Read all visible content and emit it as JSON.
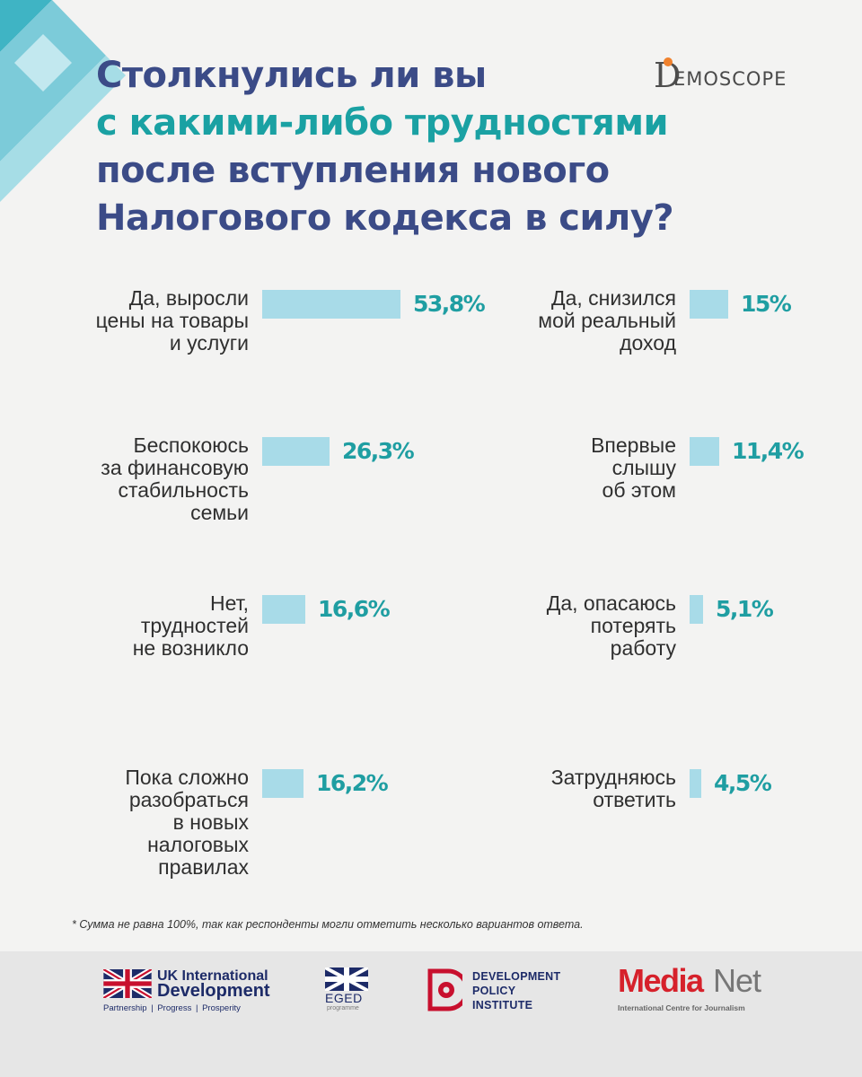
{
  "title": {
    "line1": "Столкнулись ли вы",
    "line2": "с какими-либо трудностями",
    "line3": "после вступления нового",
    "line4": "Налогового кодекса в силу?"
  },
  "brand": {
    "name": "EMOSCOPE",
    "initial": "D"
  },
  "colors": {
    "title": "#3b4b87",
    "highlight": "#1aa1a3",
    "bar": "#a8dbe8",
    "value": "#1f9ea2"
  },
  "chart_data": {
    "type": "bar",
    "orientation": "horizontal",
    "title": "Столкнулись ли вы с какими-либо трудностями после вступления нового Налогового кодекса в силу?",
    "unit": "%",
    "ylim": [
      0,
      53.8
    ],
    "categories": [
      "Да, выросли цены на товары и услуги",
      "Беспокоюсь за финансовую стабильность семьи",
      "Нет, трудностей не возникло",
      "Пока сложно разобраться в новых налоговых правилах",
      "Да, снизился мой реальный доход",
      "Впервые слышу об этом",
      "Да, опасаюсь потерять работу",
      "Затрудняюсь ответить"
    ],
    "values": [
      53.8,
      26.3,
      16.6,
      16.2,
      15,
      11.4,
      5.1,
      4.5
    ],
    "value_labels": [
      "53,8%",
      "26,3%",
      "16,6%",
      "16,2%",
      "15%",
      "11,4%",
      "5,1%",
      "4,5%"
    ],
    "label_lines": [
      [
        "Да, выросли",
        "цены на товары",
        "и услуги"
      ],
      [
        "Беспокоюсь",
        "за финансовую",
        "стабильность",
        "семьи"
      ],
      [
        "Нет,",
        "трудностей",
        "не возникло"
      ],
      [
        "Пока сложно",
        "разобраться",
        "в новых",
        "налоговых",
        "правилах"
      ],
      [
        "Да, снизился",
        "мой реальный",
        "доход"
      ],
      [
        "Впервые",
        "слышу",
        "об этом"
      ],
      [
        "Да, опасаюсь",
        "потерять",
        "работу"
      ],
      [
        "Затрудняюсь",
        "ответить"
      ]
    ]
  },
  "footnote": "* Сумма не равна 100%, так как респонденты могли отметить несколько вариантов ответа.",
  "footer": {
    "ukid": {
      "line1": "UK International",
      "line2": "Development",
      "tagline": "Partnership | Progress | Prosperity"
    },
    "eged": {
      "name": "EGED",
      "sub": "programme"
    },
    "dpi": {
      "line1": "DEVELOPMENT",
      "line2": "POLICY",
      "line3": "INSTITUTE"
    },
    "medianet": {
      "part1": "Media",
      "part2": "Net",
      "sub": "International Centre for Journalism"
    }
  }
}
